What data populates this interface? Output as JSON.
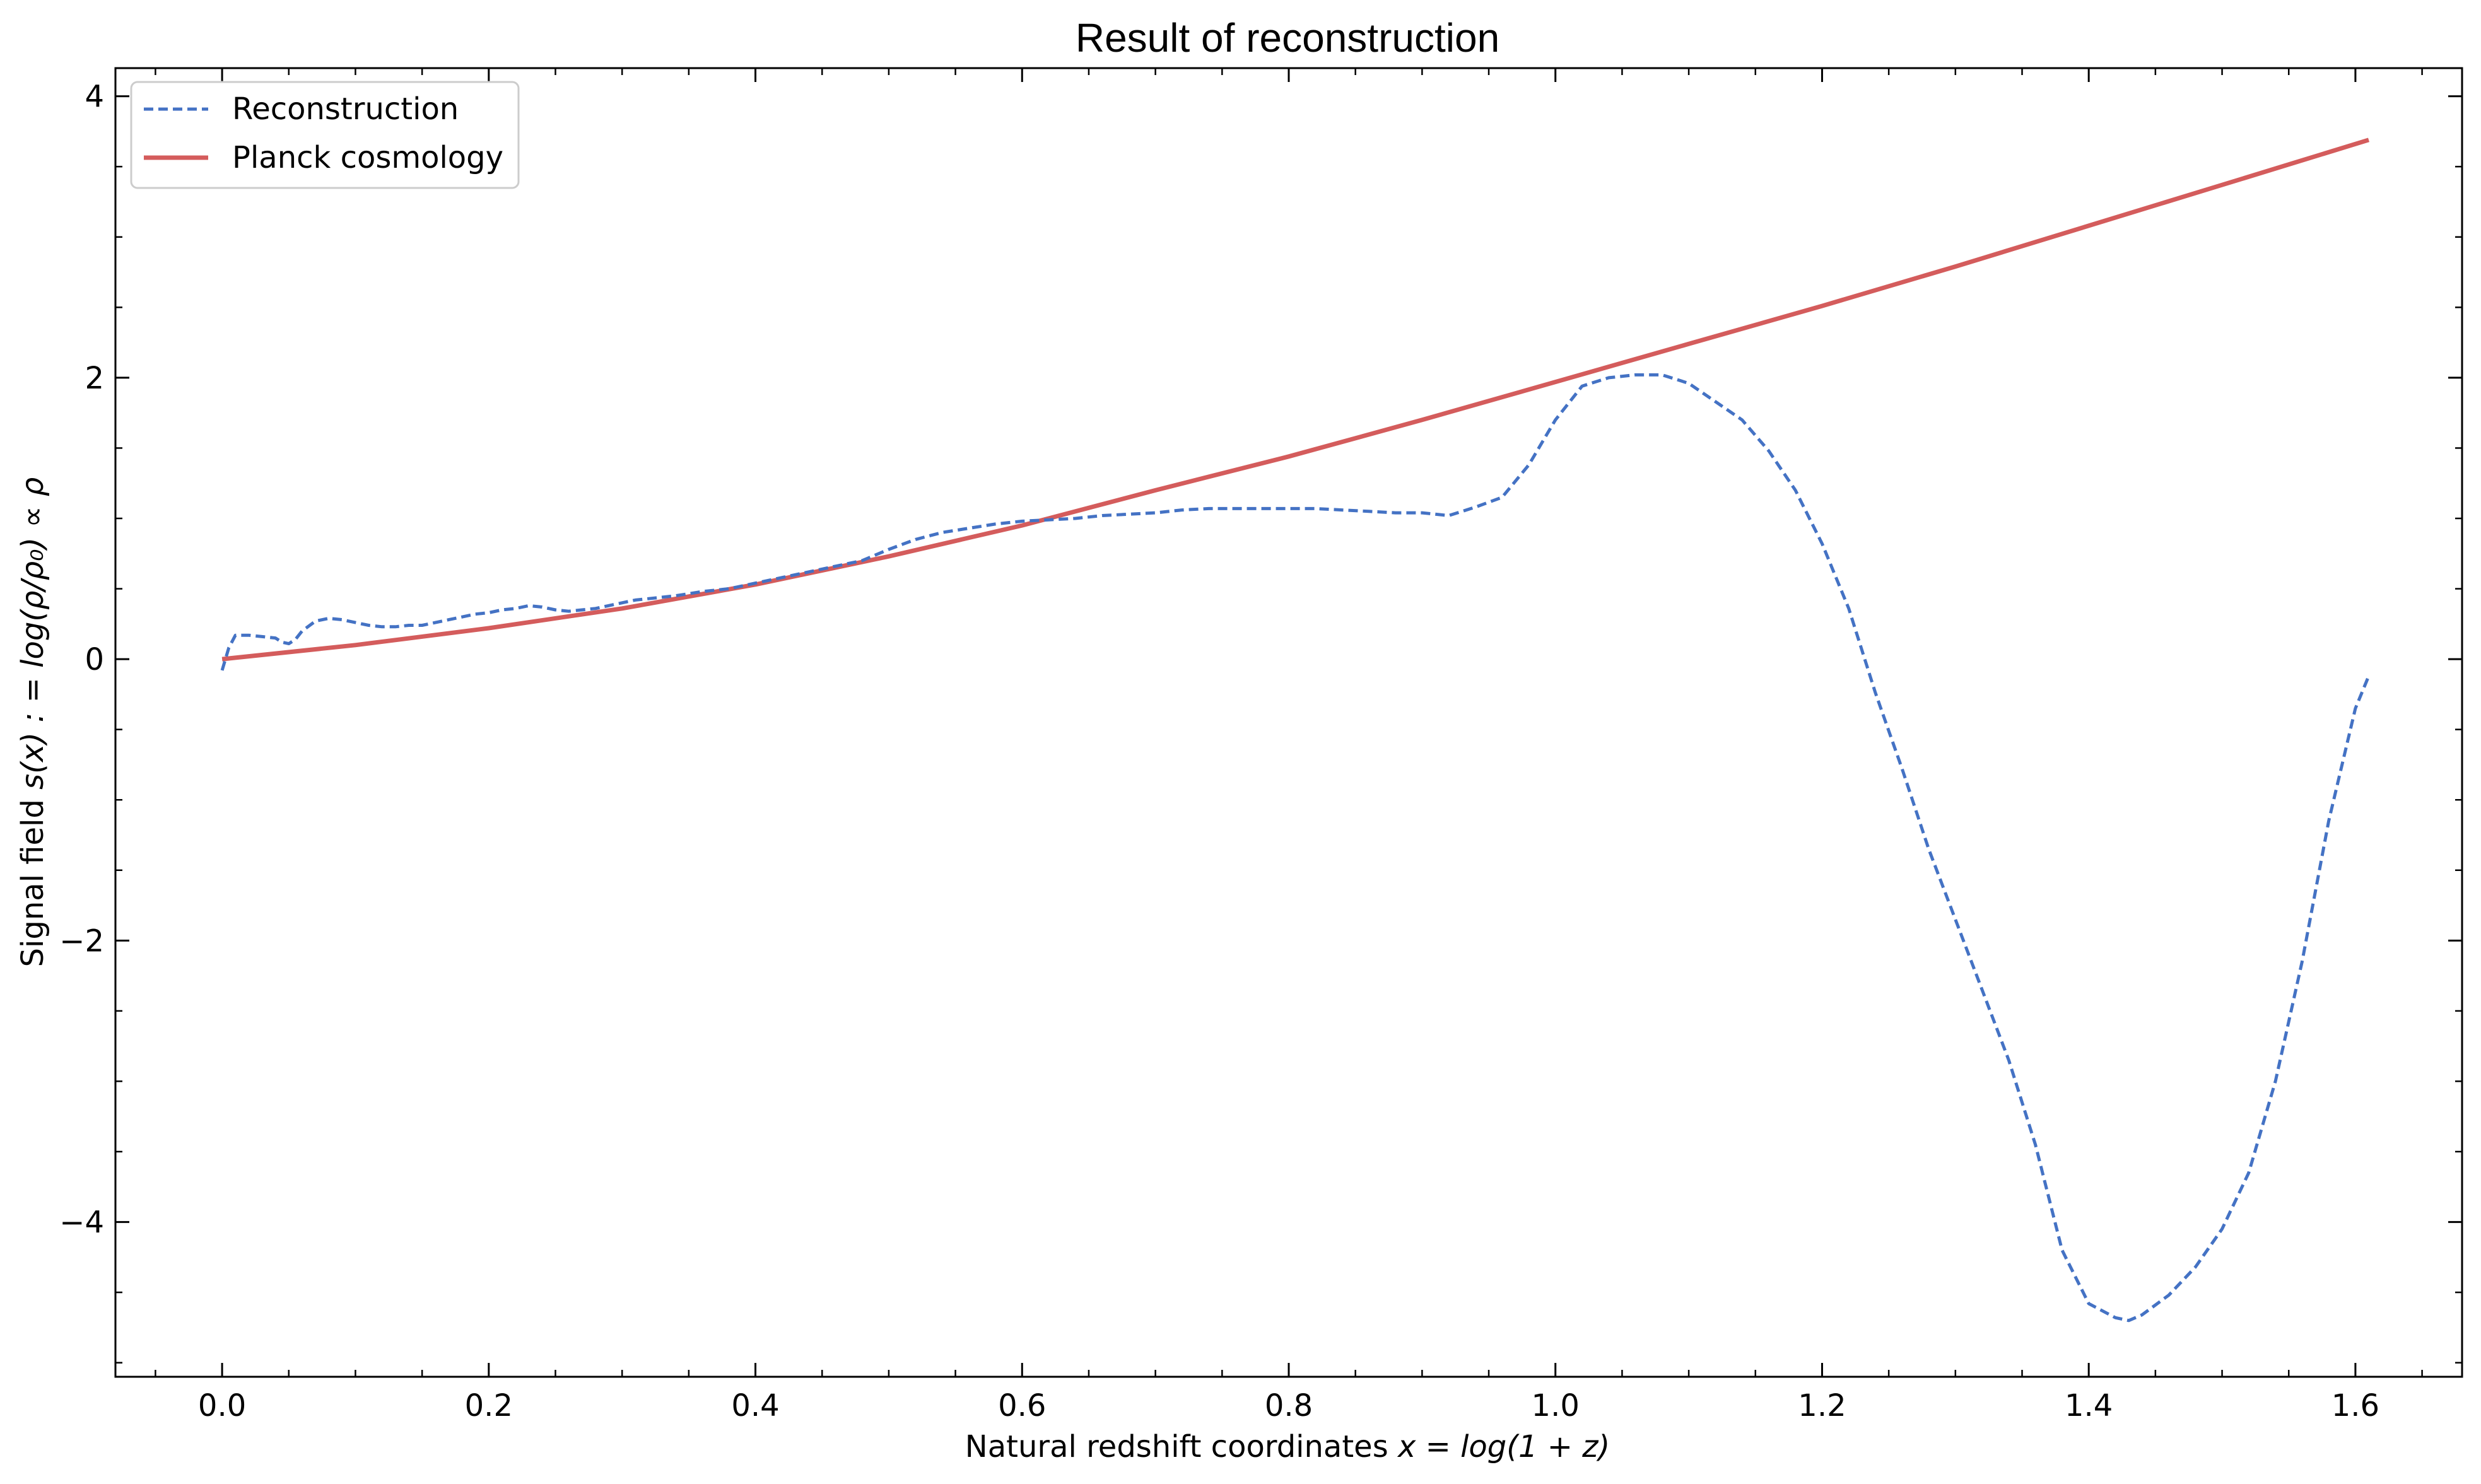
{
  "chart_data": {
    "type": "line",
    "title": "Result of reconstruction",
    "xlabel_text": "Natural redshift coordinates ",
    "xlabel_math": "x = log(1 + z)",
    "ylabel_text": "Signal field ",
    "ylabel_math": "s(x) : = log(ρ/ρ₀) ∝ ρ",
    "xlim": [
      -0.08,
      1.68
    ],
    "ylim": [
      -5.1,
      4.2
    ],
    "x_ticks": [
      0.0,
      0.2,
      0.4,
      0.6,
      0.8,
      1.0,
      1.2,
      1.4,
      1.6
    ],
    "x_tick_labels": [
      "0.0",
      "0.2",
      "0.4",
      "0.6",
      "0.8",
      "1.0",
      "1.2",
      "1.4",
      "1.6"
    ],
    "y_ticks": [
      -4,
      -2,
      0,
      2,
      4
    ],
    "y_tick_labels": [
      "−4",
      "−2",
      "0",
      "2",
      "4"
    ],
    "x_minor_step": 0.05,
    "y_minor_step": 0.5,
    "grid": false,
    "legend_position": "top-left",
    "series": [
      {
        "name": "Reconstruction",
        "color": "#4472c4",
        "style": "dashed",
        "x": [
          0.0,
          0.005,
          0.01,
          0.02,
          0.03,
          0.04,
          0.045,
          0.05,
          0.055,
          0.06,
          0.07,
          0.08,
          0.09,
          0.1,
          0.11,
          0.12,
          0.13,
          0.14,
          0.15,
          0.16,
          0.17,
          0.18,
          0.19,
          0.2,
          0.21,
          0.22,
          0.23,
          0.24,
          0.25,
          0.26,
          0.27,
          0.28,
          0.29,
          0.3,
          0.31,
          0.32,
          0.34,
          0.36,
          0.38,
          0.4,
          0.42,
          0.44,
          0.46,
          0.48,
          0.5,
          0.52,
          0.54,
          0.56,
          0.58,
          0.6,
          0.62,
          0.64,
          0.66,
          0.68,
          0.7,
          0.72,
          0.74,
          0.76,
          0.78,
          0.8,
          0.82,
          0.84,
          0.86,
          0.88,
          0.9,
          0.92,
          0.94,
          0.96,
          0.98,
          1.0,
          1.02,
          1.04,
          1.06,
          1.08,
          1.1,
          1.12,
          1.14,
          1.16,
          1.18,
          1.2,
          1.22,
          1.24,
          1.26,
          1.28,
          1.3,
          1.32,
          1.34,
          1.36,
          1.38,
          1.4,
          1.42,
          1.43,
          1.44,
          1.46,
          1.48,
          1.5,
          1.52,
          1.54,
          1.56,
          1.58,
          1.6,
          1.61
        ],
        "values": [
          -0.08,
          0.08,
          0.17,
          0.17,
          0.16,
          0.15,
          0.12,
          0.11,
          0.14,
          0.2,
          0.27,
          0.29,
          0.28,
          0.26,
          0.24,
          0.23,
          0.23,
          0.24,
          0.24,
          0.26,
          0.28,
          0.3,
          0.32,
          0.33,
          0.35,
          0.36,
          0.38,
          0.37,
          0.35,
          0.34,
          0.35,
          0.36,
          0.38,
          0.4,
          0.42,
          0.43,
          0.45,
          0.48,
          0.5,
          0.54,
          0.58,
          0.62,
          0.66,
          0.7,
          0.78,
          0.85,
          0.9,
          0.93,
          0.96,
          0.98,
          0.99,
          1.0,
          1.02,
          1.03,
          1.04,
          1.06,
          1.07,
          1.07,
          1.07,
          1.07,
          1.07,
          1.06,
          1.05,
          1.04,
          1.04,
          1.02,
          1.08,
          1.15,
          1.38,
          1.7,
          1.94,
          2.0,
          2.02,
          2.02,
          1.96,
          1.83,
          1.7,
          1.48,
          1.2,
          0.82,
          0.36,
          -0.24,
          -0.78,
          -1.35,
          -1.85,
          -2.35,
          -2.85,
          -3.45,
          -4.2,
          -4.58,
          -4.68,
          -4.7,
          -4.66,
          -4.52,
          -4.32,
          -4.05,
          -3.65,
          -3.0,
          -2.15,
          -1.15,
          -0.35,
          -0.12
        ]
      },
      {
        "name": "Planck cosmology",
        "color": "#d45c5c",
        "style": "solid",
        "x": [
          0.0,
          0.1,
          0.2,
          0.3,
          0.4,
          0.5,
          0.6,
          0.7,
          0.8,
          0.9,
          1.0,
          1.1,
          1.2,
          1.3,
          1.4,
          1.5,
          1.61
        ],
        "values": [
          0.0,
          0.1,
          0.22,
          0.36,
          0.53,
          0.73,
          0.95,
          1.2,
          1.44,
          1.7,
          1.97,
          2.24,
          2.51,
          2.79,
          3.08,
          3.37,
          3.69
        ]
      }
    ]
  }
}
